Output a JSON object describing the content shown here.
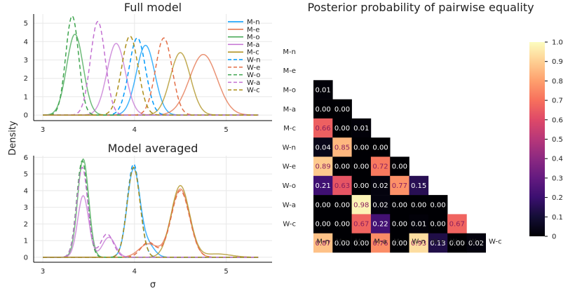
{
  "figure": {
    "ylabel": "Density",
    "xlabel": "σ"
  },
  "chart_data": [
    {
      "type": "line",
      "title": "Full model",
      "xlim": [
        2.9,
        5.5
      ],
      "ylim": [
        -0.3,
        5.5
      ],
      "xticks": [
        "3",
        "4",
        "5"
      ],
      "yticks": [
        "0",
        "1",
        "2",
        "3",
        "4",
        "5"
      ],
      "grid": true,
      "legend": "top-right",
      "series": [
        {
          "name": "M-n",
          "color": "#009AFA",
          "dash": false,
          "peaks": [
            {
              "mu": 4.12,
              "sd": 0.1,
              "h": 3.8
            }
          ]
        },
        {
          "name": "M-e",
          "color": "#E36F47",
          "dash": false,
          "peaks": [
            {
              "mu": 4.75,
              "sd": 0.15,
              "h": 3.3
            }
          ]
        },
        {
          "name": "M-o",
          "color": "#3EA44E",
          "dash": false,
          "peaks": [
            {
              "mu": 3.35,
              "sd": 0.09,
              "h": 4.4
            }
          ]
        },
        {
          "name": "M-a",
          "color": "#C371D2",
          "dash": false,
          "peaks": [
            {
              "mu": 3.8,
              "sd": 0.1,
              "h": 3.9
            }
          ]
        },
        {
          "name": "M-c",
          "color": "#AC8E18",
          "dash": false,
          "peaks": [
            {
              "mu": 4.5,
              "sd": 0.11,
              "h": 3.4
            }
          ]
        },
        {
          "name": "W-n",
          "color": "#009AFA",
          "dash": true,
          "peaks": [
            {
              "mu": 4.03,
              "sd": 0.09,
              "h": 4.2
            }
          ]
        },
        {
          "name": "W-e",
          "color": "#E36F47",
          "dash": true,
          "peaks": [
            {
              "mu": 4.32,
              "sd": 0.09,
              "h": 4.2
            }
          ]
        },
        {
          "name": "W-o",
          "color": "#3EA44E",
          "dash": true,
          "peaks": [
            {
              "mu": 3.32,
              "sd": 0.07,
              "h": 5.4
            }
          ]
        },
        {
          "name": "W-a",
          "color": "#C371D2",
          "dash": true,
          "peaks": [
            {
              "mu": 3.6,
              "sd": 0.08,
              "h": 5.1
            }
          ]
        },
        {
          "name": "W-c",
          "color": "#AC8E18",
          "dash": true,
          "peaks": [
            {
              "mu": 3.95,
              "sd": 0.09,
              "h": 4.3
            }
          ]
        }
      ]
    },
    {
      "type": "line",
      "title": "Model averaged",
      "xlim": [
        2.9,
        5.5
      ],
      "ylim": [
        -0.3,
        6.1
      ],
      "xticks": [
        "3",
        "4",
        "5"
      ],
      "yticks": [
        "0",
        "1",
        "2",
        "3",
        "4",
        "5",
        "6"
      ],
      "grid": true,
      "series": [
        {
          "name": "M-n",
          "color": "#009AFA",
          "dash": false,
          "peaks": [
            {
              "mu": 3.99,
              "sd": 0.07,
              "h": 5.3
            },
            {
              "mu": 4.15,
              "sd": 0.07,
              "h": 0.7
            }
          ]
        },
        {
          "name": "M-e",
          "color": "#E36F47",
          "dash": false,
          "peaks": [
            {
              "mu": 4.5,
              "sd": 0.1,
              "h": 4.1
            },
            {
              "mu": 4.15,
              "sd": 0.1,
              "h": 0.8
            }
          ]
        },
        {
          "name": "M-o",
          "color": "#3EA44E",
          "dash": false,
          "peaks": [
            {
              "mu": 3.44,
              "sd": 0.06,
              "h": 5.9
            }
          ]
        },
        {
          "name": "M-a",
          "color": "#C371D2",
          "dash": false,
          "peaks": [
            {
              "mu": 3.44,
              "sd": 0.06,
              "h": 3.7
            },
            {
              "mu": 3.72,
              "sd": 0.07,
              "h": 1.2
            }
          ]
        },
        {
          "name": "M-c",
          "color": "#AC8E18",
          "dash": false,
          "peaks": [
            {
              "mu": 4.5,
              "sd": 0.1,
              "h": 4.3
            },
            {
              "mu": 4.9,
              "sd": 0.15,
              "h": 0.2
            }
          ]
        },
        {
          "name": "W-n",
          "color": "#009AFA",
          "dash": true,
          "peaks": [
            {
              "mu": 3.99,
              "sd": 0.07,
              "h": 5.6
            }
          ]
        },
        {
          "name": "W-e",
          "color": "#E36F47",
          "dash": true,
          "peaks": [
            {
              "mu": 4.5,
              "sd": 0.1,
              "h": 4.0
            },
            {
              "mu": 4.15,
              "sd": 0.08,
              "h": 0.9
            }
          ]
        },
        {
          "name": "W-o",
          "color": "#3EA44E",
          "dash": true,
          "peaks": [
            {
              "mu": 3.43,
              "sd": 0.06,
              "h": 5.8
            }
          ]
        },
        {
          "name": "W-a",
          "color": "#C371D2",
          "dash": true,
          "peaks": [
            {
              "mu": 3.43,
              "sd": 0.06,
              "h": 5.4
            },
            {
              "mu": 3.7,
              "sd": 0.07,
              "h": 1.4
            }
          ]
        },
        {
          "name": "W-c",
          "color": "#AC8E18",
          "dash": true,
          "peaks": [
            {
              "mu": 3.99,
              "sd": 0.07,
              "h": 5.4
            }
          ]
        }
      ]
    },
    {
      "type": "heatmap",
      "title": "Posterior probability of pairwise equality",
      "labels": [
        "M-n",
        "M-e",
        "M-o",
        "M-a",
        "M-c",
        "W-n",
        "W-e",
        "W-o",
        "W-a",
        "W-c"
      ],
      "colorbar_ticks": [
        "0",
        "0.1",
        "0.2",
        "0.3",
        "0.4",
        "0.5",
        "0.6",
        "0.7",
        "0.8",
        "0.9",
        "1.0"
      ],
      "colorscale": "magma",
      "rows": [
        [],
        [
          "0.01"
        ],
        [
          "0.00",
          "0.00"
        ],
        [
          "0.66",
          "0.00",
          "0.01"
        ],
        [
          "0.04",
          "0.85",
          "0.00",
          "0.00"
        ],
        [
          "0.89",
          "0.00",
          "0.00",
          "0.72",
          "0.00"
        ],
        [
          "0.21",
          "0.63",
          "0.00",
          "0.02",
          "0.77",
          "0.15"
        ],
        [
          "0.00",
          "0.00",
          "0.98",
          "0.02",
          "0.00",
          "0.00",
          "0.00"
        ],
        [
          "0.00",
          "0.00",
          "0.67",
          "0.22",
          "0.00",
          "0.01",
          "0.00",
          "0.67"
        ],
        [
          "0.87",
          "0.00",
          "0.00",
          "0.76",
          "0.00",
          "0.93",
          "0.13",
          "0.00",
          "0.02"
        ]
      ]
    }
  ]
}
